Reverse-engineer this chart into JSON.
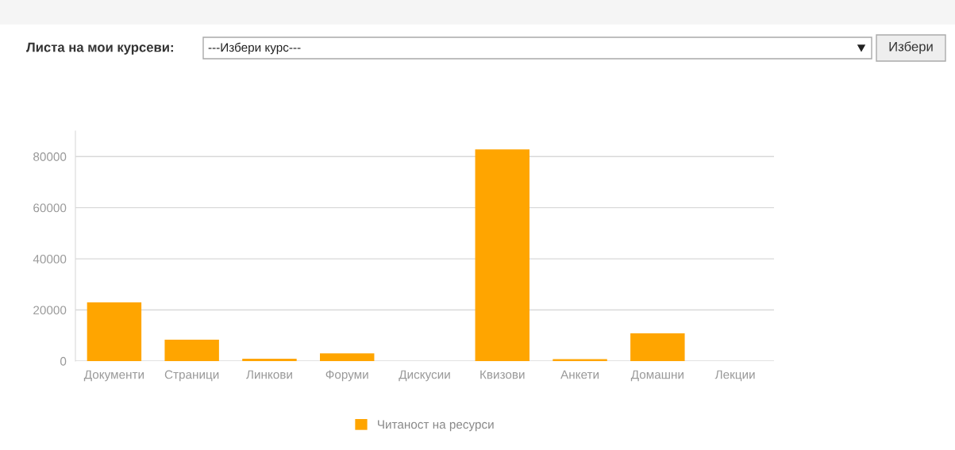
{
  "chart_data": {
    "type": "bar",
    "categories": [
      "Документи",
      "Страници",
      "Линкови",
      "Форуми",
      "Дискусии",
      "Квизови",
      "Анкети",
      "Домашни",
      "Лекции"
    ],
    "series": [
      {
        "name": "Читаност на ресурси",
        "color": "#ffa500",
        "values": [
          23000,
          8400,
          900,
          3000,
          0,
          82800,
          800,
          10900,
          0
        ]
      }
    ],
    "ylim": [
      0,
      90000
    ],
    "yticks": [
      0,
      20000,
      40000,
      60000,
      80000
    ],
    "grid": "y",
    "legend": "bottom",
    "annotations": [
      "Листа на мои курсеви:",
      "---Избери курс---",
      "Избери"
    ]
  }
}
